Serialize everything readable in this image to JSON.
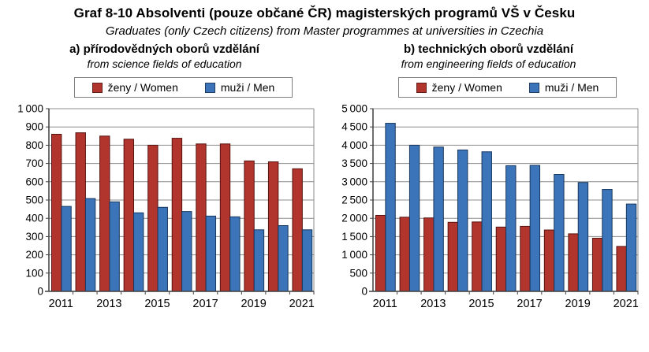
{
  "title": "Graf 8-10 Absolventi (pouze občané ČR) magisterských programů VŠ v Česku",
  "subtitle": "Graduates (only Czech citizens) from Master programmes at universities in Czechia",
  "colors": {
    "women_fill": "#B2352D",
    "men_fill": "#3C74B9",
    "women_outline": "#571310",
    "men_outline": "#17375D",
    "grid": "#8c8c8c",
    "axis": "#3f3f3f",
    "text": "#000000"
  },
  "chart_data": [
    {
      "type": "bar",
      "title_cs": "a) přírodovědných oborů vzdělání",
      "title_en": "from science fields of education",
      "categories": [
        "2011",
        "2012",
        "2013",
        "2014",
        "2015",
        "2016",
        "2017",
        "2018",
        "2019",
        "2020",
        "2021"
      ],
      "x_tick_labels_shown": [
        "2011",
        "2013",
        "2015",
        "2017",
        "2019",
        "2021"
      ],
      "series": [
        {
          "name": "ženy / Women",
          "color": "#B2352D",
          "outline": "#571310",
          "values": [
            860,
            868,
            850,
            833,
            800,
            838,
            807,
            807,
            714,
            709,
            671
          ]
        },
        {
          "name": "muži / Men",
          "color": "#3C74B9",
          "outline": "#17375D",
          "values": [
            465,
            508,
            490,
            430,
            460,
            437,
            412,
            408,
            337,
            360,
            337
          ]
        }
      ],
      "ylim": [
        0,
        1000
      ],
      "ytick_step": 100,
      "grid": true,
      "legend_position": "top"
    },
    {
      "type": "bar",
      "title_cs": "b) technických oborů vzdělání",
      "title_en": "from engineering fields of education",
      "categories": [
        "2011",
        "2012",
        "2013",
        "2014",
        "2015",
        "2016",
        "2017",
        "2018",
        "2019",
        "2020",
        "2021"
      ],
      "x_tick_labels_shown": [
        "2011",
        "2013",
        "2015",
        "2017",
        "2019",
        "2021"
      ],
      "series": [
        {
          "name": "ženy / Women",
          "color": "#B2352D",
          "outline": "#571310",
          "values": [
            2080,
            2030,
            2010,
            1890,
            1900,
            1760,
            1780,
            1680,
            1575,
            1455,
            1230
          ]
        },
        {
          "name": "muži / Men",
          "color": "#3C74B9",
          "outline": "#17375D",
          "values": [
            4600,
            4000,
            3950,
            3870,
            3820,
            3440,
            3450,
            3200,
            2980,
            2790,
            2390
          ]
        }
      ],
      "ylim": [
        0,
        5000
      ],
      "ytick_step": 500,
      "grid": true,
      "legend_position": "top"
    }
  ]
}
